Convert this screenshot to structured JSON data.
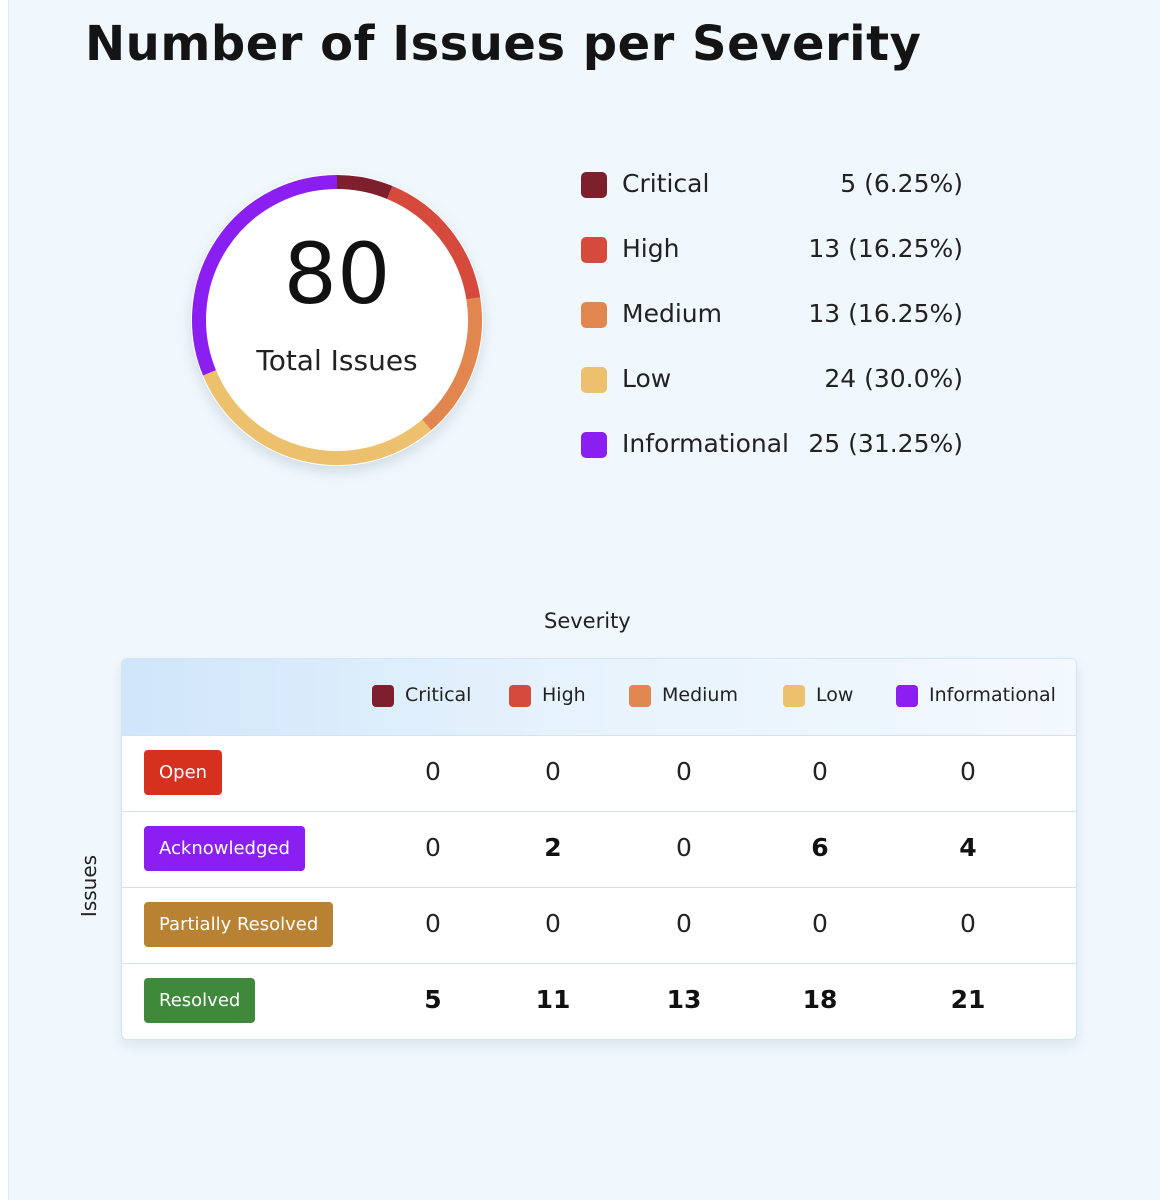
{
  "title": "Number of Issues per Severity",
  "colors": {
    "critical": "#7e1f2e",
    "high": "#d54a3d",
    "medium": "#e28650",
    "low": "#ecc06c",
    "informational": "#8b1ef0",
    "status_open": "#d6301e",
    "status_acknowledged": "#8b1ef0",
    "status_partially_resolved": "#b88232",
    "status_resolved": "#3f8a3a"
  },
  "chart_data": [
    {
      "type": "pie",
      "variant": "donut",
      "center": {
        "value": "80",
        "label": "Total Issues"
      },
      "categories": [
        "Critical",
        "High",
        "Medium",
        "Low",
        "Informational"
      ],
      "values": [
        5,
        13,
        13,
        24,
        25
      ],
      "value_labels": [
        "5 (6.25%)",
        "13 (16.25%)",
        "13 (16.25%)",
        "24 (30.0%)",
        "25 (31.25%)"
      ],
      "legend_position": "right"
    },
    {
      "type": "table",
      "xlabel": "Severity",
      "ylabel": "Issues",
      "columns": [
        "Critical",
        "High",
        "Medium",
        "Low",
        "Informational"
      ],
      "rows": [
        {
          "label": "Open",
          "values": [
            0,
            0,
            0,
            0,
            0
          ]
        },
        {
          "label": "Acknowledged",
          "values": [
            0,
            2,
            0,
            6,
            4
          ]
        },
        {
          "label": "Partially Resolved",
          "values": [
            0,
            0,
            0,
            0,
            0
          ]
        },
        {
          "label": "Resolved",
          "values": [
            5,
            11,
            13,
            18,
            21
          ]
        }
      ]
    }
  ]
}
